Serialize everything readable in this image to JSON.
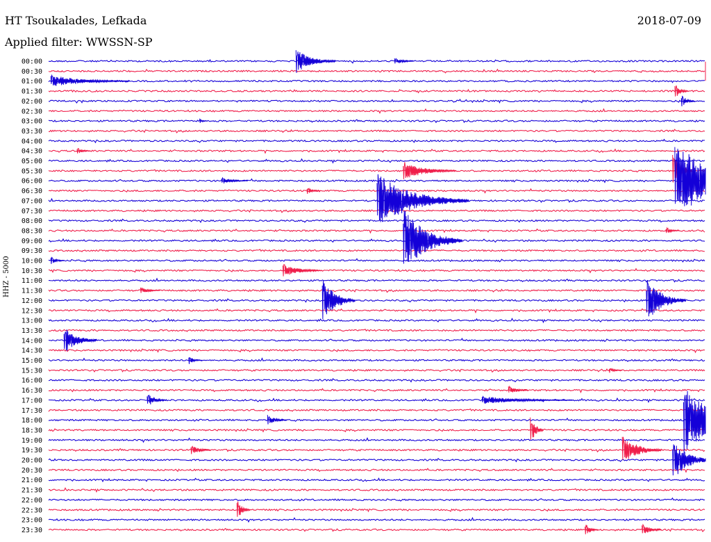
{
  "header": {
    "station": "HT Tsoukalades, Lefkada",
    "filter_prefix": "Applied filter: ",
    "filter_name": "WWSSN-SP",
    "date": "2018-07-09"
  },
  "channel_label": "HHZ - 5000",
  "colors": {
    "blue": "#1400d8",
    "red": "#f01e4a"
  },
  "chart_data": {
    "type": "line",
    "chart_kind": "helicorder",
    "title": "HT Tsoukalades, Lefkada",
    "ylabel": "HHZ - 5000",
    "row_interval_minutes": 30,
    "trace_colors_alternate": [
      "blue",
      "red"
    ],
    "rows": [
      "00:00",
      "00:30",
      "01:00",
      "01:30",
      "02:00",
      "02:30",
      "03:00",
      "03:30",
      "04:00",
      "04:30",
      "05:00",
      "05:30",
      "06:00",
      "06:30",
      "07:00",
      "07:30",
      "08:00",
      "08:30",
      "09:00",
      "09:30",
      "10:00",
      "10:30",
      "11:00",
      "11:30",
      "12:00",
      "12:30",
      "13:00",
      "13:30",
      "14:00",
      "14:30",
      "15:00",
      "15:30",
      "16:00",
      "16:30",
      "17:00",
      "17:30",
      "18:00",
      "18:30",
      "19:00",
      "19:30",
      "20:00",
      "20:30",
      "21:00",
      "21:30",
      "22:00",
      "22:30",
      "23:00",
      "23:30"
    ],
    "events_minutes_into_row": [
      {
        "row": "00:00",
        "t": 11.3,
        "amp": 18,
        "dur": 0.6
      },
      {
        "row": "00:00",
        "t": 15.8,
        "amp": 5,
        "dur": 0.3
      },
      {
        "row": "00:30",
        "t": 30.0,
        "amp": 24,
        "dur": 0.5
      },
      {
        "row": "01:00",
        "t": 0.1,
        "amp": 9,
        "dur": 1.2
      },
      {
        "row": "01:30",
        "t": 28.6,
        "amp": 12,
        "dur": 0.2
      },
      {
        "row": "02:00",
        "t": 28.9,
        "amp": 10,
        "dur": 0.2
      },
      {
        "row": "03:00",
        "t": 6.9,
        "amp": 4,
        "dur": 0.1
      },
      {
        "row": "04:30",
        "t": 1.3,
        "amp": 5,
        "dur": 0.2
      },
      {
        "row": "05:30",
        "t": 16.2,
        "amp": 14,
        "dur": 0.8
      },
      {
        "row": "05:30",
        "t": 28.5,
        "amp": 30,
        "dur": 0.3
      },
      {
        "row": "06:00",
        "t": 7.9,
        "amp": 5,
        "dur": 0.4
      },
      {
        "row": "06:00",
        "t": 28.6,
        "amp": 60,
        "dur": 1.4
      },
      {
        "row": "06:30",
        "t": 11.8,
        "amp": 6,
        "dur": 0.2
      },
      {
        "row": "07:00",
        "t": 15.0,
        "amp": 40,
        "dur": 1.4
      },
      {
        "row": "08:30",
        "t": 28.2,
        "amp": 5,
        "dur": 0.2
      },
      {
        "row": "09:00",
        "t": 16.2,
        "amp": 48,
        "dur": 0.9
      },
      {
        "row": "09:00",
        "t": 18.4,
        "amp": 6,
        "dur": 0.1
      },
      {
        "row": "10:00",
        "t": 0.1,
        "amp": 6,
        "dur": 0.2
      },
      {
        "row": "10:30",
        "t": 10.7,
        "amp": 10,
        "dur": 0.6
      },
      {
        "row": "11:30",
        "t": 4.2,
        "amp": 5,
        "dur": 0.3
      },
      {
        "row": "12:00",
        "t": 12.5,
        "amp": 36,
        "dur": 0.5
      },
      {
        "row": "12:00",
        "t": 27.3,
        "amp": 34,
        "dur": 0.6
      },
      {
        "row": "14:00",
        "t": 0.7,
        "amp": 20,
        "dur": 0.5
      },
      {
        "row": "15:00",
        "t": 6.4,
        "amp": 6,
        "dur": 0.2
      },
      {
        "row": "15:30",
        "t": 25.6,
        "amp": 4,
        "dur": 0.2
      },
      {
        "row": "16:30",
        "t": 21.0,
        "amp": 7,
        "dur": 0.3
      },
      {
        "row": "17:00",
        "t": 4.5,
        "amp": 10,
        "dur": 0.3
      },
      {
        "row": "17:00",
        "t": 19.8,
        "amp": 6,
        "dur": 1.4
      },
      {
        "row": "18:00",
        "t": 10.0,
        "amp": 8,
        "dur": 0.3
      },
      {
        "row": "18:00",
        "t": 29.0,
        "amp": 50,
        "dur": 1.2
      },
      {
        "row": "18:30",
        "t": 22.0,
        "amp": 22,
        "dur": 0.2
      },
      {
        "row": "19:30",
        "t": 6.5,
        "amp": 8,
        "dur": 0.3
      },
      {
        "row": "19:30",
        "t": 26.2,
        "amp": 22,
        "dur": 0.6
      },
      {
        "row": "20:00",
        "t": 28.5,
        "amp": 30,
        "dur": 0.6
      },
      {
        "row": "22:30",
        "t": 8.6,
        "amp": 16,
        "dur": 0.2
      },
      {
        "row": "23:30",
        "t": 24.5,
        "amp": 10,
        "dur": 0.2
      },
      {
        "row": "23:30",
        "t": 27.1,
        "amp": 10,
        "dur": 0.3
      }
    ]
  }
}
